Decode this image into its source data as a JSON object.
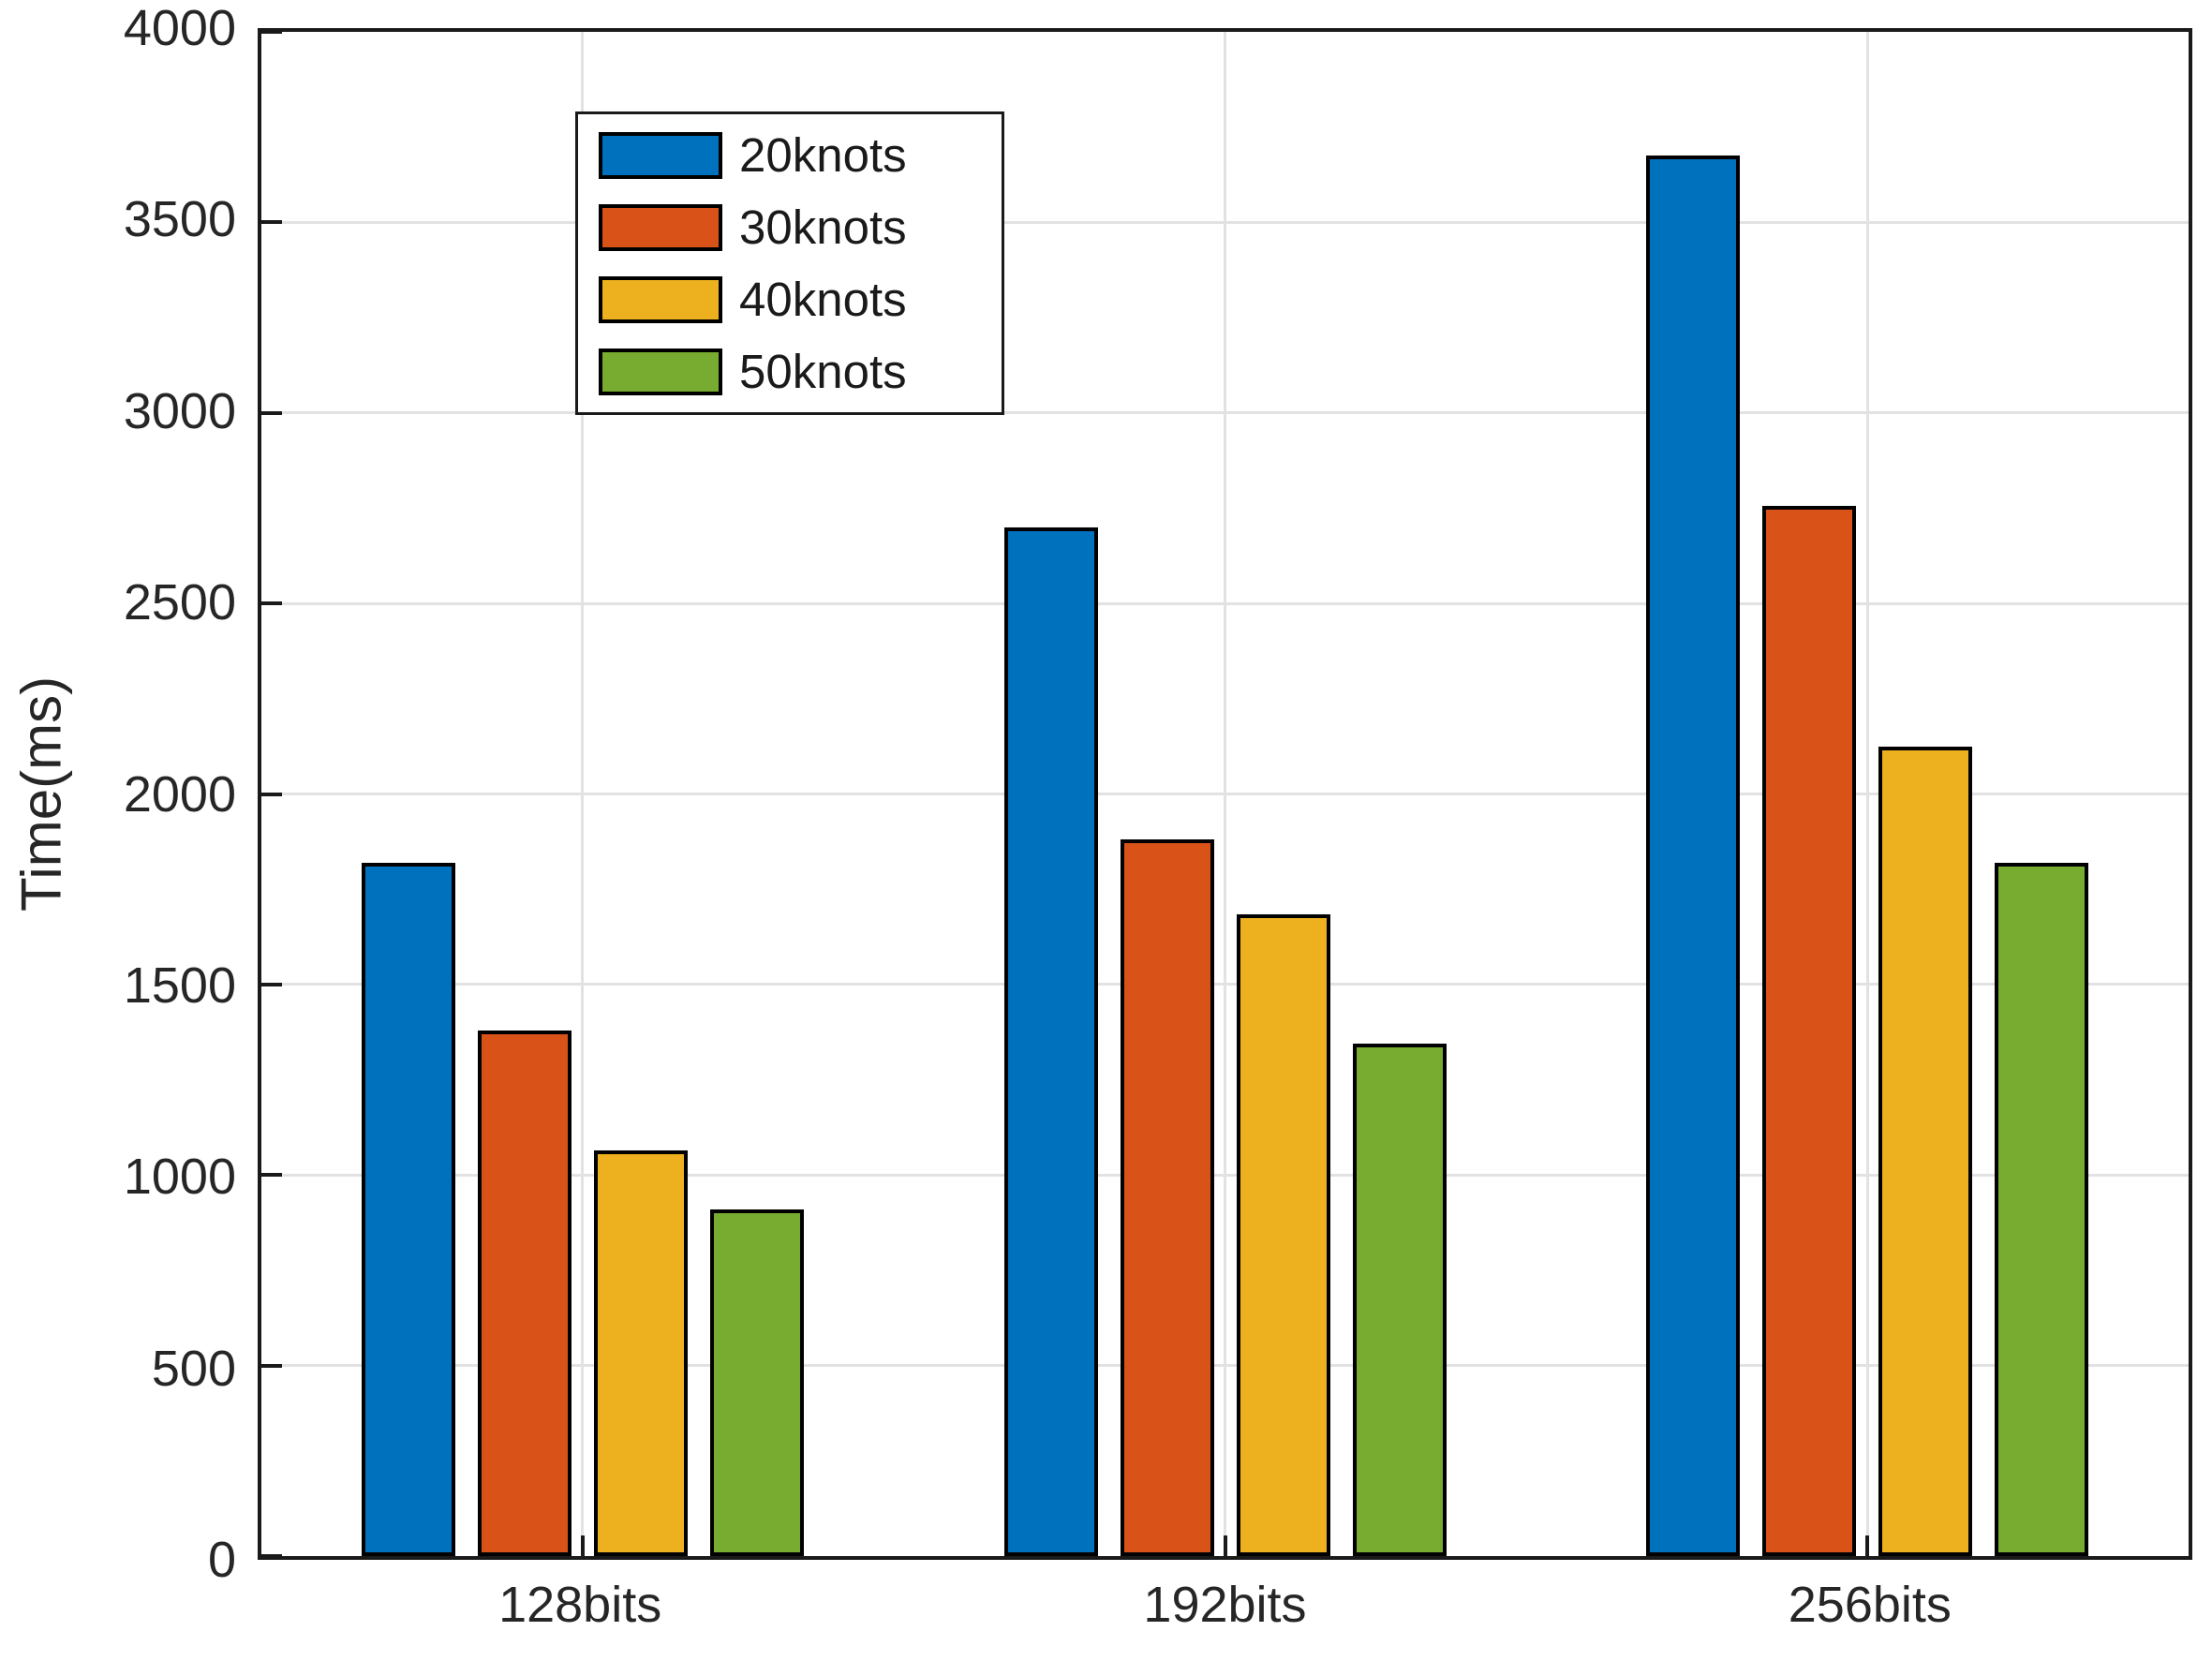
{
  "chart_data": {
    "type": "bar",
    "title": "",
    "xlabel": "",
    "ylabel": "Time(ms)",
    "ylim": [
      0,
      4000
    ],
    "ytick_step": 500,
    "grid": true,
    "legend_position": "top-left",
    "categories": [
      "128bits",
      "192bits",
      "256bits"
    ],
    "series": [
      {
        "name": "20knots",
        "color": "#0072BD",
        "values": [
          1820,
          2700,
          3675
        ]
      },
      {
        "name": "30knots",
        "color": "#D95319",
        "values": [
          1380,
          1880,
          2755
        ]
      },
      {
        "name": "40knots",
        "color": "#EDB120",
        "values": [
          1065,
          1685,
          2125
        ]
      },
      {
        "name": "50knots",
        "color": "#77AC30",
        "values": [
          910,
          1345,
          1820
        ]
      }
    ],
    "colors": {
      "axis": "#1a1a1a",
      "gridline": "#e2e2e2",
      "tick_text": "#262626",
      "background": "#ffffff"
    }
  }
}
